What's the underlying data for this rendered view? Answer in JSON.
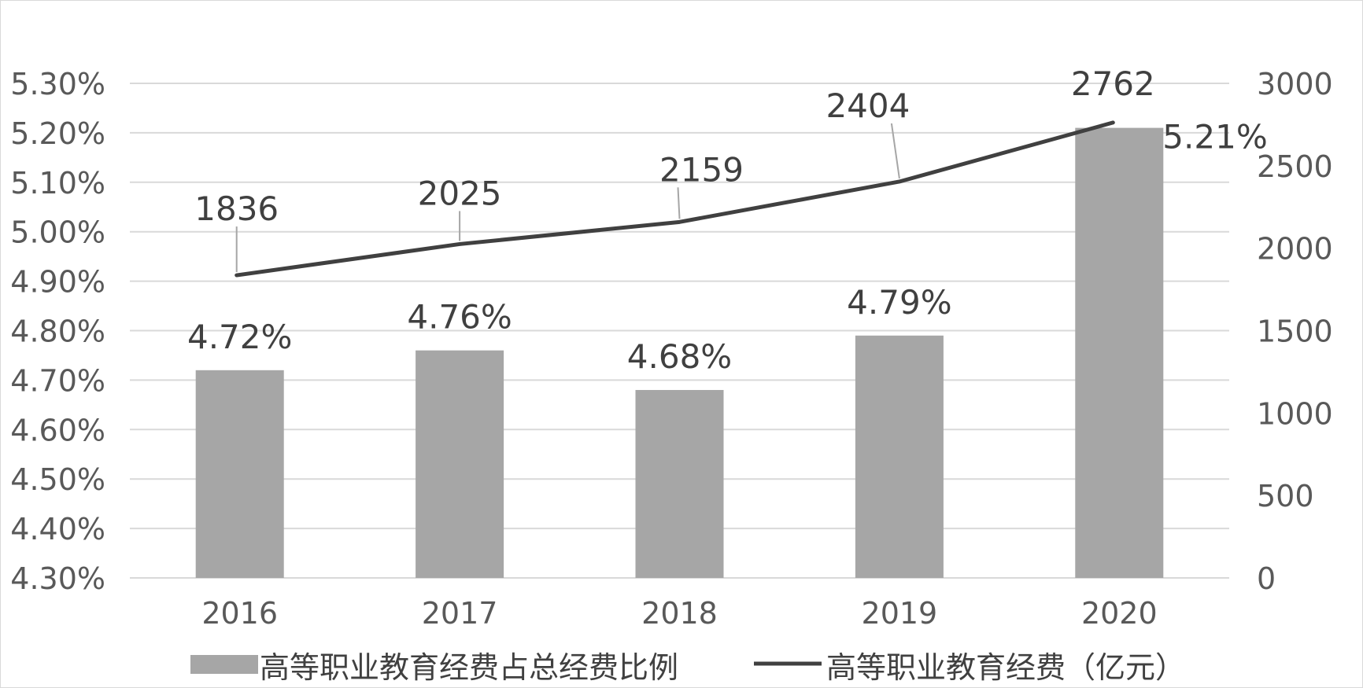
{
  "chart_data": {
    "type": "bar",
    "categories": [
      "2016",
      "2017",
      "2018",
      "2019",
      "2020"
    ],
    "series": [
      {
        "name": "高等职业教育经费占总经费比例",
        "kind": "bar",
        "axis": "left",
        "values": [
          4.72,
          4.76,
          4.68,
          4.79,
          5.21
        ],
        "labels": [
          "4.72%",
          "4.76%",
          "4.68%",
          "4.79%",
          "5.21%"
        ],
        "color": "#a6a6a6"
      },
      {
        "name": "高等职业教育经费（亿元）",
        "kind": "line",
        "axis": "right",
        "values": [
          1836,
          2025,
          2159,
          2404,
          2762
        ],
        "labels": [
          "1836",
          "2025",
          "2159",
          "2404",
          "2762"
        ],
        "color": "#404040"
      }
    ],
    "y_left": {
      "ylim": [
        4.3,
        5.3
      ],
      "ticks": [
        "4.30%",
        "4.40%",
        "4.50%",
        "4.60%",
        "4.70%",
        "4.80%",
        "4.90%",
        "5.00%",
        "5.10%",
        "5.20%",
        "5.30%"
      ]
    },
    "y_right": {
      "ylim": [
        0,
        3000
      ],
      "ticks": [
        "0",
        "500",
        "1000",
        "1500",
        "2000",
        "2500",
        "3000"
      ]
    },
    "grid": true,
    "grid_color": "#d9d9d9",
    "legend_position": "bottom",
    "title": "",
    "xlabel": "",
    "ylabel": ""
  }
}
